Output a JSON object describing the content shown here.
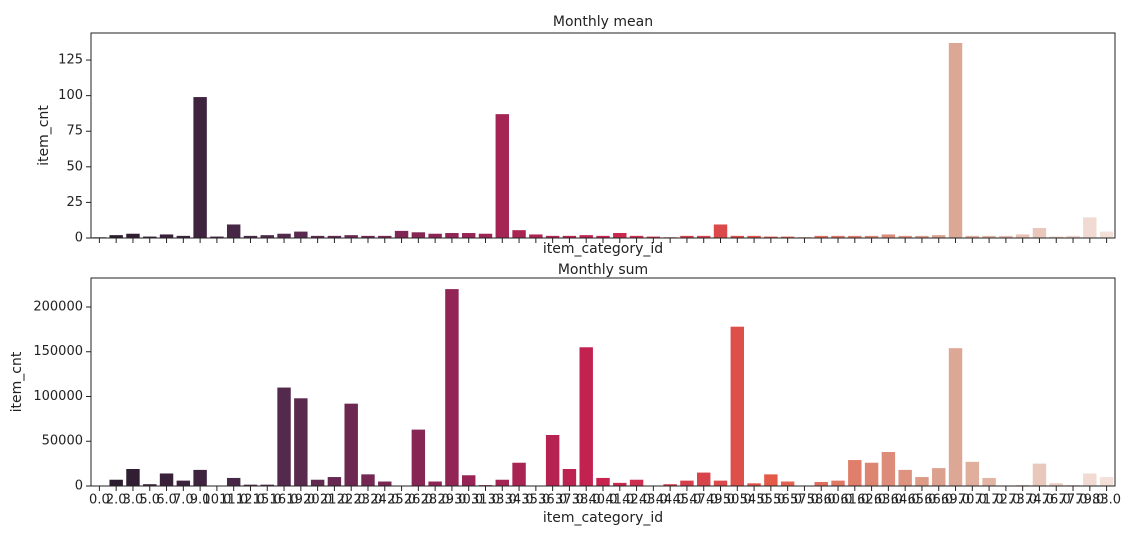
{
  "chart_data": [
    {
      "type": "bar",
      "title": "Monthly mean",
      "xlabel": "item_category_id",
      "ylabel": "item_cnt",
      "values": [
        0.5,
        2,
        3,
        1,
        2.5,
        1.5,
        99,
        1,
        9.5,
        1.5,
        2,
        3,
        4.5,
        1.5,
        1.5,
        2,
        1.5,
        1.5,
        5,
        4,
        3,
        3.5,
        3.5,
        3,
        87,
        5.5,
        2.5,
        1.5,
        1.5,
        2,
        1.5,
        3.5,
        1.5,
        1,
        0.5,
        1.5,
        1.5,
        9.5,
        1.5,
        1.5,
        1,
        1,
        0.5,
        1.5,
        1.5,
        1.5,
        1.5,
        2.5,
        1.5,
        1.5,
        2,
        137,
        1.5,
        1.5,
        1.5,
        2.5,
        7,
        1,
        1.5,
        14.5,
        4.5
      ],
      "ylim": [
        0,
        144
      ],
      "yticks": [
        0,
        25,
        50,
        75,
        100,
        125
      ],
      "palette": [
        "#2a1b2d",
        "#4d2a4c",
        "#8c2556",
        "#c8224f",
        "#e35a48",
        "#dba18e",
        "#f3e0d8"
      ]
    },
    {
      "type": "bar",
      "title": "Monthly sum",
      "xlabel": "item_category_id",
      "ylabel": "item_cnt",
      "categories": [
        "0.0",
        "2.0",
        "3.0",
        "5.0",
        "6.0",
        "7.0",
        "9.0",
        "10.0",
        "11.0",
        "12.0",
        "15.0",
        "16.0",
        "19.0",
        "20.0",
        "21.0",
        "22.0",
        "23.0",
        "24.0",
        "25.0",
        "26.0",
        "28.0",
        "29.0",
        "30.0",
        "31.0",
        "33.0",
        "34.0",
        "35.0",
        "36.0",
        "37.0",
        "38.0",
        "40.0",
        "41.0",
        "42.0",
        "43.0",
        "44.0",
        "45.0",
        "47.0",
        "49.0",
        "50.0",
        "54.0",
        "55.0",
        "56.0",
        "57.0",
        "58.0",
        "60.0",
        "61.0",
        "62.0",
        "63.0",
        "64.0",
        "65.0",
        "66.0",
        "69.0",
        "70.0",
        "71.0",
        "72.0",
        "73.0",
        "74.0",
        "76.0",
        "77.0",
        "79.0",
        "83.0"
      ],
      "values": [
        500,
        7000,
        19000,
        2000,
        14000,
        6000,
        18000,
        500,
        9000,
        1500,
        1500,
        110000,
        98000,
        7000,
        10000,
        92000,
        13000,
        5000,
        500,
        63000,
        5000,
        220000,
        12000,
        1000,
        7000,
        26000,
        500,
        57000,
        19000,
        155000,
        9000,
        3500,
        7000,
        500,
        2000,
        6000,
        15000,
        6000,
        178000,
        3000,
        13000,
        5000,
        500,
        4500,
        6000,
        29000,
        26000,
        38000,
        18000,
        10000,
        20000,
        154000,
        27000,
        9000,
        500,
        1000,
        25000,
        3000,
        1000,
        14000,
        10000
      ],
      "ylim": [
        0,
        232400
      ],
      "yticks": [
        0,
        50000,
        100000,
        150000,
        200000
      ],
      "palette": [
        "#2a1b2d",
        "#4d2a4c",
        "#8c2556",
        "#c8224f",
        "#e35a48",
        "#dba18e",
        "#f3e0d8"
      ]
    }
  ]
}
